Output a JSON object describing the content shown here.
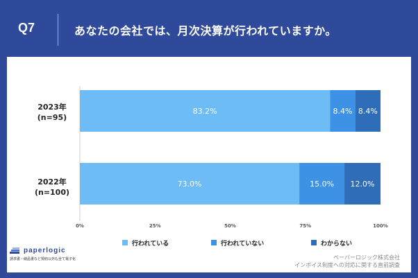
{
  "header": {
    "question_no": "Q7",
    "question": "あなたの会社では、月次決算が行われていますか。"
  },
  "chart_data": {
    "type": "bar",
    "orientation": "horizontal",
    "stacked": true,
    "categories": [
      {
        "label_year": "2023年",
        "label_n": "(n=95)"
      },
      {
        "label_year": "2022年",
        "label_n": "(n=100)"
      }
    ],
    "series": [
      {
        "name": "行われている",
        "color": "#6dbcf6",
        "values": [
          83.2,
          73.0
        ],
        "labels": [
          "83.2%",
          "73.0%"
        ]
      },
      {
        "name": "行われていない",
        "color": "#3d92e5",
        "values": [
          8.4,
          15.0
        ],
        "labels": [
          "8.4%",
          "15.0%"
        ]
      },
      {
        "name": "わからない",
        "color": "#2f6db8",
        "values": [
          8.4,
          12.0
        ],
        "labels": [
          "8.4%",
          "12.0%"
        ]
      }
    ],
    "xlim": [
      0,
      100
    ],
    "xticks": [
      "0%",
      "25%",
      "50%",
      "75%",
      "100%"
    ],
    "grid": false,
    "legend_position": "bottom"
  },
  "logo": {
    "name": "paperlogic",
    "tagline": "請求書・納品書など契約以外も全て電子化"
  },
  "source": {
    "line1": "ペーパーロジック株式会社",
    "line2": "インボイス制度への対応に関する直前調査"
  }
}
